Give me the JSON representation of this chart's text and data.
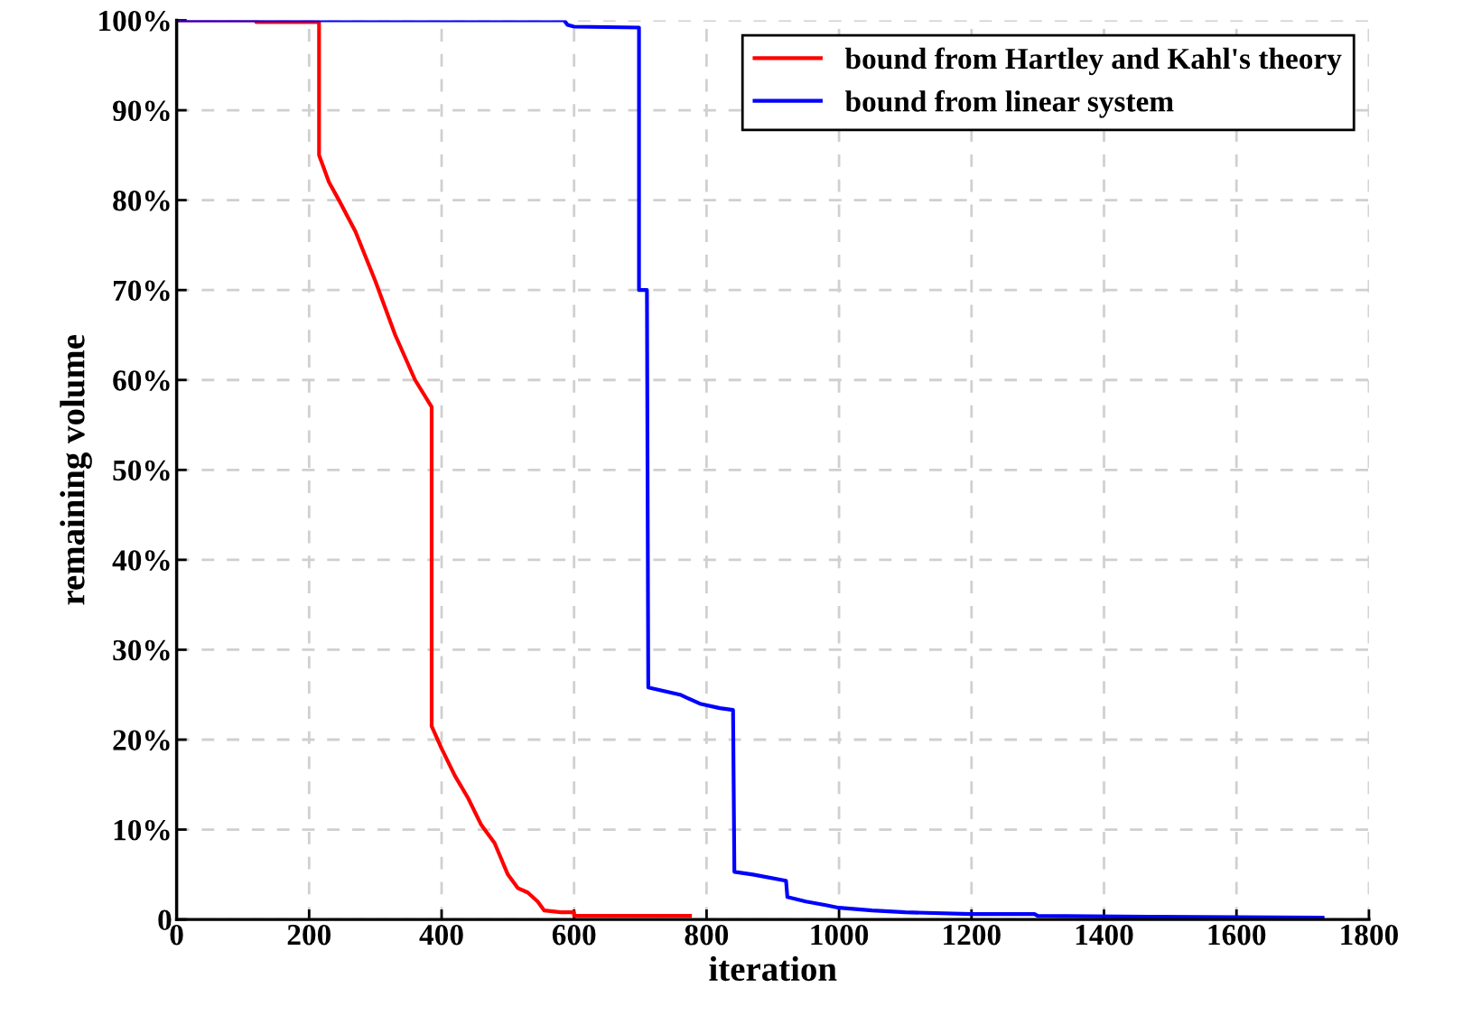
{
  "chart_data": {
    "type": "line",
    "xlabel": "iteration",
    "ylabel": "remaining volume",
    "xlim": [
      0,
      1800
    ],
    "xticks": [
      0,
      200,
      400,
      600,
      800,
      1000,
      1200,
      1400,
      1600,
      1800
    ],
    "ylim": [
      0,
      100
    ],
    "yticks": [
      {
        "value": 0,
        "label": "0"
      },
      {
        "value": 10,
        "label": "10%"
      },
      {
        "value": 20,
        "label": "20%"
      },
      {
        "value": 30,
        "label": "30%"
      },
      {
        "value": 40,
        "label": "40%"
      },
      {
        "value": 50,
        "label": "50%"
      },
      {
        "value": 60,
        "label": "60%"
      },
      {
        "value": 70,
        "label": "70%"
      },
      {
        "value": 80,
        "label": "80%"
      },
      {
        "value": 90,
        "label": "90%"
      },
      {
        "value": 100,
        "label": "100%"
      }
    ],
    "grid": true,
    "legend": "top right",
    "line_style": "solid",
    "marker": "none",
    "series": [
      {
        "name": "bound from Hartley and Kahl's theory",
        "color": "#ff0000",
        "x": [
          0,
          120,
          120,
          215,
          215,
          230,
          245,
          270,
          300,
          330,
          360,
          385,
          385,
          400,
          420,
          440,
          460,
          480,
          500,
          515,
          530,
          545,
          555,
          580,
          600,
          600,
          775
        ],
        "values": [
          100,
          100,
          99.8,
          99.8,
          85,
          82,
          80,
          76.5,
          71,
          65,
          60,
          57,
          21.5,
          19,
          16,
          13.5,
          10.5,
          8.5,
          5,
          3.5,
          3,
          2,
          1,
          0.8,
          0.8,
          0.4,
          0.4
        ]
      },
      {
        "name": "bound from linear system",
        "color": "#0000ff",
        "x": [
          0,
          585,
          590,
          600,
          698,
          698,
          710,
          712,
          730,
          760,
          790,
          820,
          840,
          842,
          870,
          920,
          922,
          950,
          980,
          1000,
          1050,
          1100,
          1200,
          1295,
          1300,
          1480,
          1730
        ],
        "values": [
          100,
          100,
          99.5,
          99.3,
          99.2,
          70,
          70,
          25.8,
          25.5,
          25,
          24,
          23.5,
          23.3,
          5.3,
          5,
          4.3,
          2.5,
          2,
          1.6,
          1.3,
          1.0,
          0.8,
          0.6,
          0.6,
          0.4,
          0.3,
          0.2
        ]
      }
    ]
  }
}
